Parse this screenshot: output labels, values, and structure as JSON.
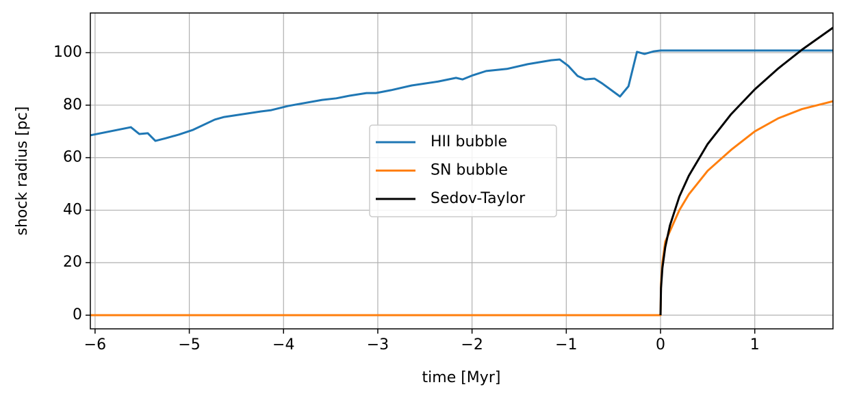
{
  "chart_data": {
    "type": "line",
    "xlabel": "time [Myr]",
    "ylabel": "shock radius [pc]",
    "xlim": [
      -6.05,
      1.83
    ],
    "ylim": [
      -5.2,
      115.1
    ],
    "xticks": [
      {
        "value": -6,
        "label": "−6"
      },
      {
        "value": -5,
        "label": "−5"
      },
      {
        "value": -4,
        "label": "−4"
      },
      {
        "value": -3,
        "label": "−3"
      },
      {
        "value": -2,
        "label": "−2"
      },
      {
        "value": -1,
        "label": "−1"
      },
      0,
      1
    ],
    "yticks": [
      0,
      20,
      40,
      60,
      80,
      100
    ],
    "grid": true,
    "legend": "center",
    "series": [
      {
        "name": "HII bubble",
        "color": "#1f77b4",
        "x": [
          -6.05,
          -5.62,
          -5.53,
          -5.44,
          -5.36,
          -5.25,
          -5.11,
          -4.96,
          -4.73,
          -4.63,
          -4.24,
          -4.13,
          -3.95,
          -3.59,
          -3.44,
          -3.3,
          -3.12,
          -3.02,
          -2.86,
          -2.64,
          -2.36,
          -2.17,
          -2.1,
          -1.99,
          -1.85,
          -1.63,
          -1.41,
          -1.16,
          -1.07,
          -0.98,
          -0.88,
          -0.8,
          -0.7,
          -0.62,
          -0.43,
          -0.34,
          -0.25,
          -0.17,
          -0.07,
          0,
          1.83
        ],
        "values": [
          68.5,
          71.6,
          69,
          69.3,
          66.4,
          67.4,
          68.8,
          70.6,
          74.5,
          75.5,
          77.6,
          78.1,
          79.7,
          82,
          82.6,
          83.6,
          84.6,
          84.6,
          85.7,
          87.5,
          89,
          90.4,
          89.8,
          91.4,
          93,
          93.8,
          95.6,
          97.1,
          97.4,
          95,
          91.1,
          89.8,
          90.1,
          88.3,
          83.3,
          87.2,
          100.3,
          99.5,
          100.5,
          100.8,
          100.8
        ]
      },
      {
        "name": "SN bubble",
        "color": "#ff7f0e",
        "x": [
          -6.05,
          0,
          0.005,
          0.02,
          0.05,
          0.1,
          0.2,
          0.3,
          0.5,
          0.75,
          1.0,
          1.25,
          1.5,
          1.83
        ],
        "values": [
          0,
          0,
          12,
          20,
          28,
          32,
          40,
          46,
          55,
          63,
          70,
          75,
          78.5,
          81.5
        ]
      },
      {
        "name": "Sedov-Taylor",
        "color": "#000000",
        "x": [
          0,
          0.005,
          0.02,
          0.05,
          0.1,
          0.2,
          0.3,
          0.5,
          0.75,
          1.0,
          1.25,
          1.5,
          1.83
        ],
        "values": [
          0,
          10.3,
          18,
          25.9,
          34.2,
          45.2,
          53.1,
          65.2,
          76.6,
          86,
          94,
          101.1,
          109.5
        ]
      }
    ]
  }
}
